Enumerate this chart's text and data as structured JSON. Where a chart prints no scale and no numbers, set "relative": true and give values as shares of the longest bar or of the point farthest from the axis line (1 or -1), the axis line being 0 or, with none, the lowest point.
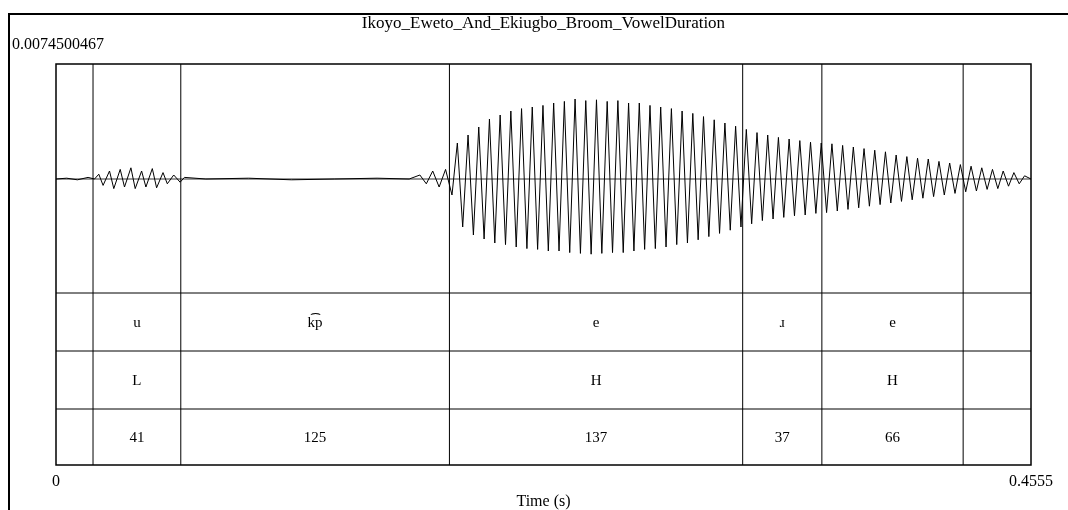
{
  "chart_data": {
    "type": "line",
    "title": "Ikoyo_Eweto_And_Ekiugbo_Broom_VowelDuration",
    "relative": true,
    "color": "#000000",
    "xlim": [
      0,
      0.4555
    ],
    "xticks": [
      0,
      0.4555
    ],
    "xlabel": "Time (s)",
    "annotations": [
      "0.0074500467",
      "u",
      "k͡p",
      "e",
      "ɹ",
      "e",
      "L",
      "H",
      "H",
      "41",
      "125",
      "137",
      "37",
      "66"
    ],
    "ref_lines": [
      {
        "axis": "x",
        "value": 0.0173
      },
      {
        "axis": "x",
        "value": 0.0583
      },
      {
        "axis": "x",
        "value": 0.1838
      },
      {
        "axis": "x",
        "value": 0.3208
      },
      {
        "axis": "x",
        "value": 0.3578
      },
      {
        "axis": "x",
        "value": 0.4238
      }
    ],
    "x": [
      0,
      0.005,
      0.01,
      0.015,
      0.018,
      0.02,
      0.022,
      0.025,
      0.027,
      0.03,
      0.032,
      0.035,
      0.037,
      0.04,
      0.042,
      0.045,
      0.047,
      0.05,
      0.052,
      0.055,
      0.058,
      0.06,
      0.07,
      0.09,
      0.11,
      0.13,
      0.15,
      0.165,
      0.17,
      0.173,
      0.176,
      0.179,
      0.182,
      0.185,
      0.1875,
      0.19,
      0.1925,
      0.195,
      0.1975,
      0.2,
      0.2025,
      0.205,
      0.2075,
      0.21,
      0.2125,
      0.215,
      0.2175,
      0.22,
      0.2225,
      0.225,
      0.2275,
      0.23,
      0.2325,
      0.235,
      0.2375,
      0.24,
      0.2425,
      0.245,
      0.2475,
      0.25,
      0.2525,
      0.255,
      0.2575,
      0.26,
      0.2625,
      0.265,
      0.2675,
      0.27,
      0.2725,
      0.275,
      0.2775,
      0.28,
      0.2825,
      0.285,
      0.2875,
      0.29,
      0.2925,
      0.295,
      0.2975,
      0.3,
      0.3025,
      0.305,
      0.3075,
      0.31,
      0.3125,
      0.315,
      0.3175,
      0.32,
      0.3225,
      0.325,
      0.3275,
      0.33,
      0.3325,
      0.335,
      0.3375,
      0.34,
      0.3425,
      0.345,
      0.3475,
      0.35,
      0.3525,
      0.355,
      0.3575,
      0.36,
      0.3625,
      0.365,
      0.3675,
      0.37,
      0.3725,
      0.375,
      0.3775,
      0.38,
      0.3825,
      0.385,
      0.3875,
      0.39,
      0.3925,
      0.395,
      0.3975,
      0.4,
      0.4025,
      0.405,
      0.4075,
      0.41,
      0.4125,
      0.415,
      0.4175,
      0.42,
      0.4225,
      0.425,
      0.4275,
      0.43,
      0.4325,
      0.435,
      0.4375,
      0.44,
      0.4425,
      0.445,
      0.4475,
      0.45,
      0.4525,
      0.4555
    ],
    "values": [
      0,
      0.01,
      -0.01,
      0.02,
      0,
      0.06,
      -0.08,
      0.1,
      -0.12,
      0.12,
      -0.1,
      0.14,
      -0.12,
      0.1,
      -0.1,
      0.13,
      -0.11,
      0.08,
      -0.06,
      0.05,
      -0.04,
      0.02,
      0,
      0.01,
      -0.01,
      0,
      0.01,
      0,
      0.05,
      -0.06,
      0.1,
      -0.1,
      0.12,
      -0.2,
      0.45,
      -0.6,
      0.55,
      -0.7,
      0.65,
      -0.75,
      0.75,
      -0.8,
      0.8,
      -0.82,
      0.85,
      -0.85,
      0.88,
      -0.87,
      0.9,
      -0.88,
      0.92,
      -0.9,
      0.95,
      -0.9,
      0.97,
      -0.92,
      1,
      -0.93,
      0.98,
      -0.94,
      0.99,
      -0.93,
      0.97,
      -0.92,
      0.98,
      -0.92,
      0.95,
      -0.9,
      0.95,
      -0.88,
      0.92,
      -0.87,
      0.9,
      -0.85,
      0.88,
      -0.82,
      0.85,
      -0.8,
      0.82,
      -0.76,
      0.78,
      -0.72,
      0.74,
      -0.68,
      0.7,
      -0.64,
      0.66,
      -0.6,
      0.62,
      -0.56,
      0.58,
      -0.52,
      0.55,
      -0.5,
      0.52,
      -0.48,
      0.5,
      -0.46,
      0.48,
      -0.45,
      0.46,
      -0.43,
      0.45,
      -0.42,
      0.44,
      -0.4,
      0.42,
      -0.38,
      0.4,
      -0.36,
      0.38,
      -0.34,
      0.36,
      -0.32,
      0.34,
      -0.3,
      0.3,
      -0.28,
      0.28,
      -0.26,
      0.26,
      -0.24,
      0.25,
      -0.22,
      0.22,
      -0.2,
      0.2,
      -0.18,
      0.18,
      -0.16,
      0.16,
      -0.15,
      0.14,
      -0.13,
      0.12,
      -0.12,
      0.1,
      -0.09,
      0.08,
      -0.06,
      0.04,
      0
    ]
  }
}
